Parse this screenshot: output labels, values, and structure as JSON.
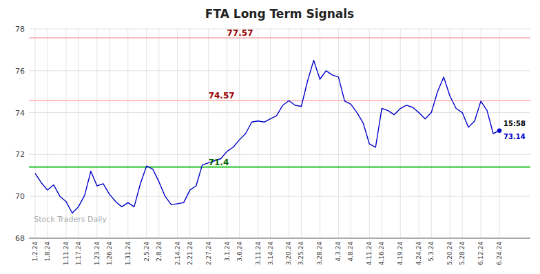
{
  "chart_data": {
    "type": "line",
    "title": "FTA Long Term Signals",
    "watermark": "Stock Traders Daily",
    "categories": [
      "1.2.24",
      null,
      "1.8.24",
      null,
      null,
      "1.11.24",
      null,
      "1.17.24",
      null,
      null,
      "1.23.24",
      null,
      "1.26.24",
      null,
      null,
      "1.31.24",
      null,
      null,
      "2.5.24",
      null,
      "2.8.24",
      null,
      null,
      "2.14.24",
      null,
      "2.21.24",
      null,
      null,
      "2.27.24",
      null,
      null,
      "3.1.24",
      null,
      "3.6.24",
      null,
      null,
      "3.11.24",
      null,
      "3.14.24",
      null,
      null,
      "3.20.24",
      null,
      "3.25.24",
      null,
      null,
      "3.28.24",
      null,
      null,
      "4.3.24",
      null,
      "4.8.24",
      null,
      null,
      "4.11.24",
      null,
      "4.16.24",
      null,
      null,
      "4.19.24",
      null,
      null,
      "4.24.24",
      null,
      "5.3.24",
      null,
      null,
      "5.20.24",
      null,
      "5.28.24",
      null,
      null,
      "6.12.24",
      null,
      null,
      "6.24.24"
    ],
    "values": [
      71.1,
      70.65,
      70.3,
      70.55,
      70.0,
      69.75,
      69.2,
      69.5,
      70.05,
      71.2,
      70.5,
      70.6,
      70.1,
      69.75,
      69.5,
      69.7,
      69.5,
      70.6,
      71.45,
      71.3,
      70.7,
      70.0,
      69.6,
      69.65,
      69.7,
      70.3,
      70.5,
      71.5,
      71.6,
      71.7,
      71.8,
      72.15,
      72.35,
      72.7,
      73.0,
      73.55,
      73.6,
      73.55,
      73.7,
      73.85,
      74.35,
      74.57,
      74.35,
      74.3,
      75.5,
      76.5,
      75.6,
      76.0,
      75.8,
      75.7,
      74.55,
      74.4,
      74.0,
      73.5,
      72.5,
      72.35,
      74.2,
      74.1,
      73.9,
      74.2,
      74.35,
      74.25,
      74.0,
      73.7,
      74.0,
      75.0,
      75.7,
      74.8,
      74.2,
      74.0,
      73.3,
      73.6,
      74.55,
      74.1,
      73.0,
      73.14
    ],
    "color": "#0000cc",
    "hlines": [
      {
        "value": 71.4,
        "label": "71.4",
        "color": "#00bb00",
        "label_color": "#006600"
      },
      {
        "value": 74.57,
        "label": "74.57",
        "color": "#ffaaaa",
        "label_color": "#990000"
      },
      {
        "value": 77.57,
        "label": "77.57",
        "color": "#ffaaaa",
        "label_color": "#990000"
      }
    ],
    "last_label": {
      "time": "15:58",
      "time_color": "#000000",
      "value": 73.14
    },
    "ylim": [
      68,
      78
    ],
    "yticks": [
      68,
      70,
      72,
      74,
      76,
      78
    ],
    "grid": true
  }
}
